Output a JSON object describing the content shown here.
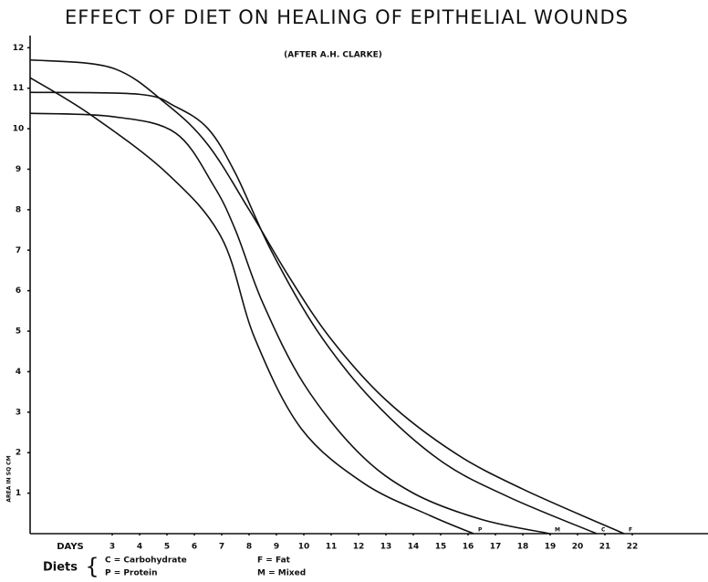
{
  "chart_data": {
    "type": "line",
    "title": "EFFECT OF DIET ON HEALING OF EPITHELIAL WOUNDS",
    "subtitle": "(AFTER A.H. CLARKE)",
    "x_label": "DAYS",
    "y_label": "AREA IN SQ CM",
    "legend_title": "Diets",
    "legend_items": [
      "C = Carbohydrate",
      "P = Protein",
      "F = Fat",
      "M = Mixed"
    ],
    "color": "#111111",
    "xlim": [
      0,
      24.8
    ],
    "ylim": [
      0,
      12.3
    ],
    "xticks": [
      3,
      4,
      5,
      6,
      7,
      8,
      9,
      10,
      11,
      12,
      13,
      14,
      15,
      16,
      17,
      18,
      19,
      20,
      21,
      22
    ],
    "yticks": [
      1,
      2,
      3,
      4,
      5,
      6,
      7,
      8,
      9,
      10,
      11,
      12
    ],
    "series": [
      {
        "name": "P",
        "x": [
          0,
          2.2,
          5,
          7,
          8.2,
          9.9,
          12.2,
          14.6,
          16.2
        ],
        "values": [
          11.26,
          10.35,
          8.9,
          7.3,
          4.84,
          2.6,
          1.24,
          0.45,
          0
        ]
      },
      {
        "name": "M",
        "x": [
          0,
          3,
          5.3,
          6.7,
          7.5,
          8.5,
          10,
          12,
          14,
          16.5,
          19
        ],
        "values": [
          10.38,
          10.3,
          9.9,
          8.6,
          7.5,
          5.7,
          3.7,
          2.0,
          1.0,
          0.35,
          0
        ]
      },
      {
        "name": "C",
        "x": [
          0,
          4,
          5.3,
          6.5,
          7.5,
          8.8,
          10.5,
          12.5,
          15,
          17.5,
          20.7
        ],
        "values": [
          10.9,
          10.85,
          10.55,
          10.0,
          8.9,
          7.0,
          5.0,
          3.3,
          1.8,
          0.9,
          0
        ]
      },
      {
        "name": "F",
        "x": [
          0,
          3,
          5,
          6.5,
          8,
          9.5,
          11,
          13,
          15.5,
          18,
          21.7
        ],
        "values": [
          11.7,
          11.5,
          10.6,
          9.6,
          8.0,
          6.3,
          4.8,
          3.3,
          2.0,
          1.1,
          0
        ]
      }
    ]
  }
}
